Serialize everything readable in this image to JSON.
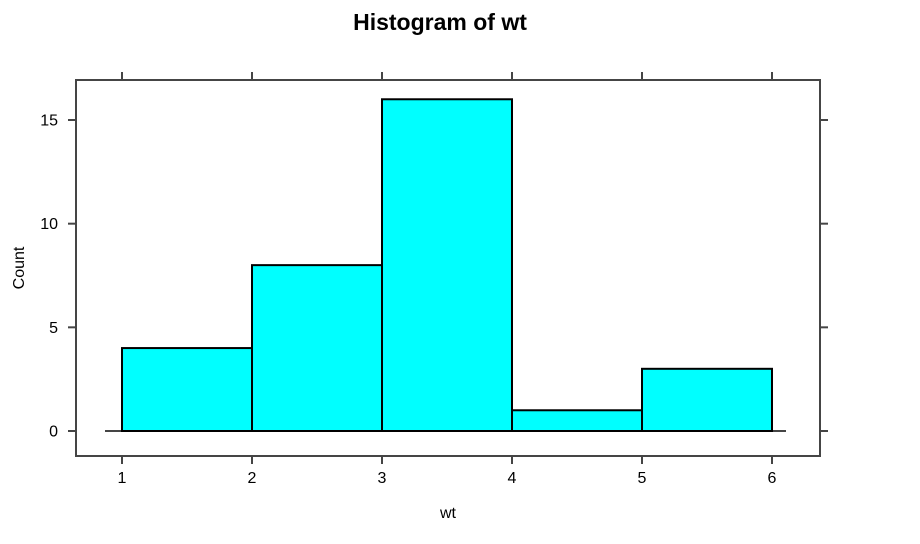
{
  "chart_data": {
    "type": "bar",
    "chart_kind": "histogram",
    "title": "Histogram of wt",
    "xlabel": "wt",
    "ylabel": "Count",
    "breaks": [
      1,
      2,
      3,
      4,
      5,
      6
    ],
    "counts": [
      4,
      8,
      16,
      1,
      3
    ],
    "bins": [
      {
        "from": 1,
        "to": 2,
        "count": 4
      },
      {
        "from": 2,
        "to": 3,
        "count": 8
      },
      {
        "from": 3,
        "to": 4,
        "count": 16
      },
      {
        "from": 4,
        "to": 5,
        "count": 1
      },
      {
        "from": 5,
        "to": 6,
        "count": 3
      }
    ],
    "x_ticks": [
      1,
      2,
      3,
      4,
      5,
      6
    ],
    "y_ticks": [
      0,
      5,
      10,
      15
    ],
    "xlim": [
      1,
      6
    ],
    "ylim": [
      0,
      16
    ],
    "grid": false,
    "legend": "none",
    "colors": {
      "bar_fill": "#00ffff",
      "bar_stroke": "#000000",
      "axis": "#454545",
      "text": "#000000",
      "background": "#ffffff"
    }
  }
}
